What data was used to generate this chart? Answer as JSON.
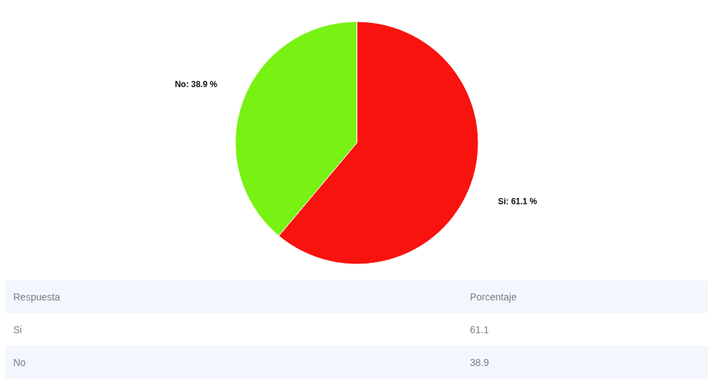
{
  "chart_data": [
    {
      "type": "pie",
      "categories": [
        "Si",
        "No"
      ],
      "values": [
        61.1,
        38.9
      ],
      "colors": [
        "#f8130f",
        "#77f213"
      ],
      "value_labels": [
        "61.1 %",
        "38.9 %"
      ],
      "legend": false
    },
    {
      "type": "other",
      "annotations": [
        "Respuesta",
        "Porcentaje",
        "Si",
        "61.1",
        "No",
        "38.9"
      ]
    }
  ]
}
